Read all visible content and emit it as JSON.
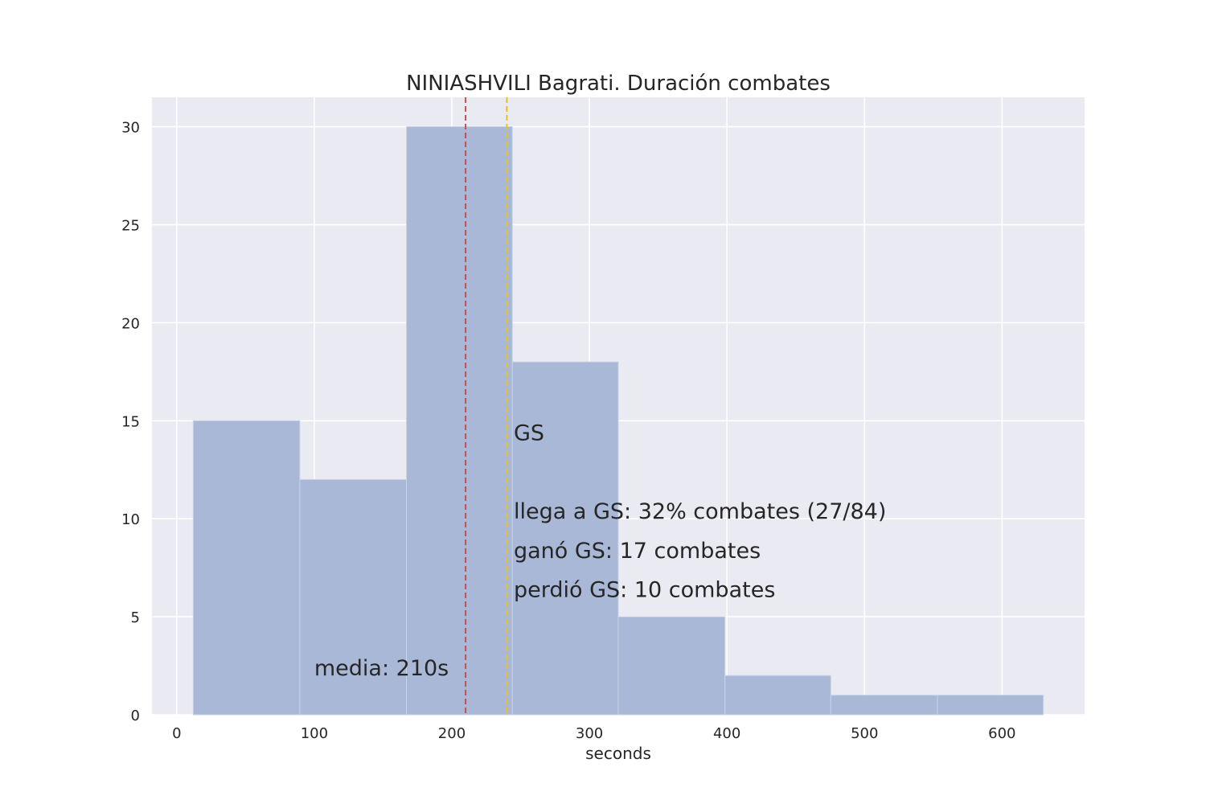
{
  "chart_data": {
    "type": "bar",
    "title": "NINIASHVILI Bagrati. Duración combates",
    "xlabel": "seconds",
    "ylabel": "",
    "xlim": [
      -18,
      660
    ],
    "ylim": [
      0,
      31.5
    ],
    "xticks": [
      0,
      100,
      200,
      300,
      400,
      500,
      600
    ],
    "yticks": [
      0,
      5,
      10,
      15,
      20,
      25,
      30
    ],
    "grid": true,
    "legend": "none",
    "bins": [
      {
        "x0": 12,
        "x1": 89.5,
        "count": 15
      },
      {
        "x0": 89.5,
        "x1": 167,
        "count": 12
      },
      {
        "x0": 167,
        "x1": 244,
        "count": 30
      },
      {
        "x0": 244,
        "x1": 321,
        "count": 18
      },
      {
        "x0": 321,
        "x1": 398.5,
        "count": 5
      },
      {
        "x0": 398.5,
        "x1": 475.5,
        "count": 2
      },
      {
        "x0": 475.5,
        "x1": 553,
        "count": 1
      },
      {
        "x0": 553,
        "x1": 630,
        "count": 1
      }
    ],
    "vlines": [
      {
        "x": 210,
        "color": "#c44e52",
        "label": "media: 210s"
      },
      {
        "x": 240,
        "color": "#e8c21f",
        "label": "GS"
      }
    ],
    "annotations": [
      {
        "text": "media: 210s",
        "x": 100,
        "y": 2.0,
        "color": "#c44e52"
      },
      {
        "text": "GS",
        "x": 245,
        "y": 14.0,
        "color": "#262626"
      },
      {
        "text": "llega a GS: 32% combates (27/84)",
        "x": 245,
        "y": 10.0,
        "color": "#262626"
      },
      {
        "text": "ganó GS: 17 combates",
        "x": 245,
        "y": 8.0,
        "color": "#262626"
      },
      {
        "text": "perdió GS: 10 combates",
        "x": 245,
        "y": 6.0,
        "color": "#262626"
      }
    ],
    "colors": {
      "bar": "#a9b8d6",
      "plot_bg": "#eaeaf2",
      "grid": "#ffffff"
    }
  }
}
